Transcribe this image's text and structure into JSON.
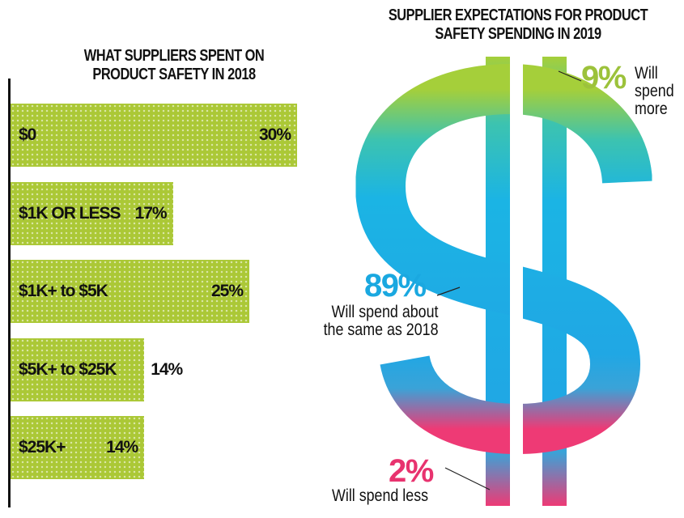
{
  "colors": {
    "bar_fill": "#abc836",
    "more": "#9cc23b",
    "same": "#1aa8e0",
    "less": "#e8336f"
  },
  "left_chart": {
    "title": "WHAT SUPPLIERS SPENT ON PRODUCT SAFETY IN 2018"
  },
  "right_chart": {
    "title": "SUPPLIER EXPECTATIONS FOR PRODUCT SAFETY SPENDING IN 2019",
    "more_pct": "9%",
    "more_label": "Will spend more",
    "same_pct": "89%",
    "same_label": "Will spend about the same as 2018",
    "less_pct": "2%",
    "less_label": "Will spend less"
  },
  "chart_data": [
    {
      "type": "bar",
      "orientation": "horizontal",
      "title": "WHAT SUPPLIERS SPENT ON PRODUCT SAFETY IN 2018",
      "categories": [
        "$0",
        "$1K OR LESS",
        "$1K+ to $5K",
        "$5K+ to $25K",
        "$25K+"
      ],
      "values": [
        30,
        17,
        25,
        14,
        14
      ],
      "value_labels": [
        "30%",
        "17%",
        "25%",
        "14%",
        "14%"
      ],
      "unit": "%"
    },
    {
      "type": "pie",
      "title": "SUPPLIER EXPECTATIONS FOR PRODUCT SAFETY SPENDING IN 2019",
      "categories": [
        "Will spend more",
        "Will spend about the same as 2018",
        "Will spend less"
      ],
      "values": [
        9,
        89,
        2
      ],
      "unit": "%"
    }
  ]
}
